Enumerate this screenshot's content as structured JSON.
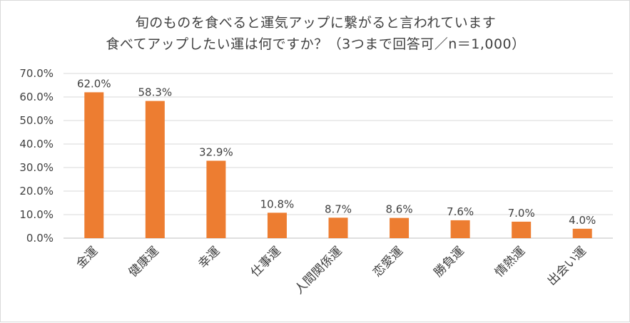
{
  "chart_data": {
    "type": "bar",
    "title": "旬のものを食べると運気アップに繋がると言われています",
    "subtitle": "食べてアップしたい運は何ですか？（3つまで回答可／n＝1,000）",
    "categories": [
      "金運",
      "健康運",
      "幸運",
      "仕事運",
      "人間関係運",
      "恋愛運",
      "勝負運",
      "情熱運",
      "出会い運"
    ],
    "values": [
      62.0,
      58.3,
      32.9,
      10.8,
      8.7,
      8.6,
      7.6,
      7.0,
      4.0
    ],
    "value_labels": [
      "62.0%",
      "58.3%",
      "32.9%",
      "10.8%",
      "8.7%",
      "8.6%",
      "7.6%",
      "7.0%",
      "4.0%"
    ],
    "yticks": [
      "0.0%",
      "10.0%",
      "20.0%",
      "30.0%",
      "40.0%",
      "50.0%",
      "60.0%",
      "70.0%"
    ],
    "ylim": [
      0,
      70
    ],
    "grid": true,
    "legend": "none",
    "bar_color": "#ED7D31",
    "grid_color": "#d9d9d9"
  }
}
